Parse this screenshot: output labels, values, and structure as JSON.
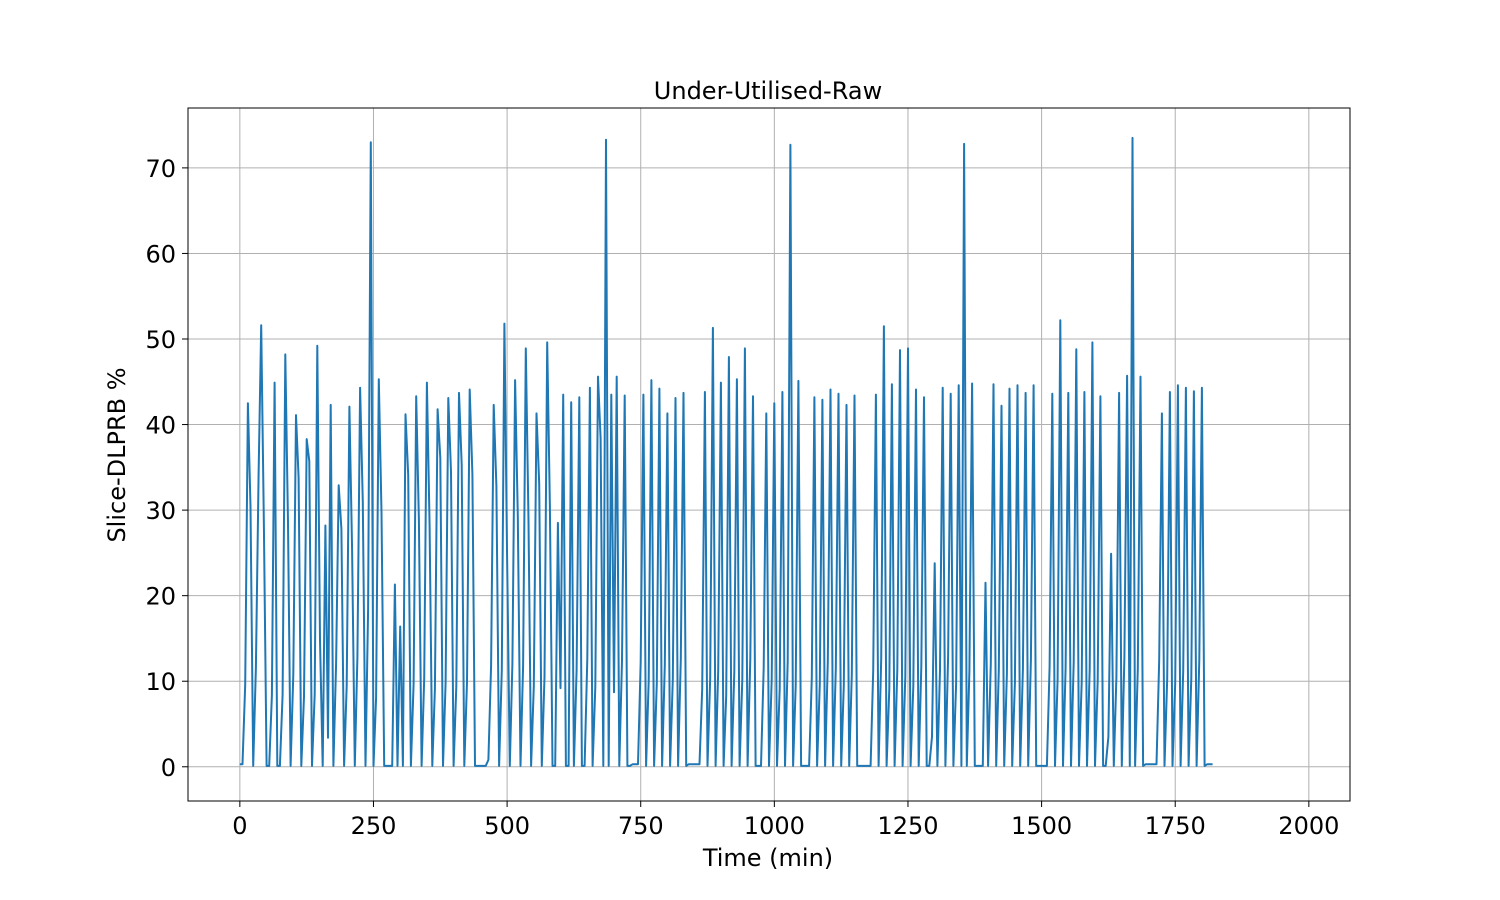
{
  "chart_data": {
    "type": "line",
    "title": "Under-Utilised-Raw",
    "xlabel": "Time (min)",
    "ylabel": "Slice-DLPRB %",
    "xlim": [
      -97,
      2077
    ],
    "ylim": [
      -4,
      77
    ],
    "x_ticks": [
      0,
      250,
      500,
      750,
      1000,
      1250,
      1500,
      1750,
      2000
    ],
    "y_ticks": [
      0,
      10,
      20,
      30,
      40,
      50,
      60,
      70
    ],
    "grid": true,
    "legend": "none",
    "series": [
      {
        "color": "#1f77b4",
        "x_start": 0,
        "x_step": 5,
        "values": [
          0.3,
          0.3,
          9.6,
          42.5,
          30.4,
          0.1,
          11.6,
          34.2,
          51.6,
          28.1,
          0.1,
          0.1,
          8.4,
          44.9,
          0.1,
          0.1,
          8.4,
          48.2,
          28.5,
          0.1,
          10.8,
          41.1,
          33.8,
          0.1,
          8.2,
          38.3,
          35.7,
          0.1,
          8.5,
          49.2,
          14.8,
          0.1,
          28.2,
          3.4,
          42.3,
          0.1,
          12.1,
          32.9,
          27.8,
          0.1,
          9.5,
          42.1,
          25.3,
          0.1,
          12.8,
          44.3,
          30.9,
          0.1,
          18.4,
          73,
          0.1,
          8.1,
          45.3,
          29.7,
          0.1,
          0.1,
          0.1,
          0.1,
          21.3,
          0.1,
          16.4,
          0.1,
          41.2,
          34.1,
          0.1,
          9.7,
          43.3,
          28.8,
          0.1,
          10.3,
          44.9,
          28.1,
          0.1,
          9.1,
          41.8,
          36.1,
          0.1,
          9.8,
          43.1,
          34.5,
          0.1,
          9.4,
          43.7,
          35.3,
          0.1,
          9.9,
          44.1,
          34.2,
          0.1,
          0.1,
          0.1,
          0.1,
          0.1,
          0.8,
          11.9,
          42.3,
          32.8,
          0.1,
          11.3,
          51.8,
          24.5,
          0.1,
          12.1,
          45.2,
          29.3,
          0.1,
          11.8,
          48.9,
          28.7,
          0.1,
          9.4,
          41.3,
          33.1,
          0.1,
          10.5,
          49.6,
          30.3,
          0.1,
          0.1,
          28.5,
          9.2,
          43.5,
          0.1,
          0.1,
          42.6,
          0.1,
          11.3,
          43.2,
          0.1,
          0.1,
          12.6,
          44.3,
          0.1,
          9.3,
          45.6,
          38.4,
          0.1,
          73.3,
          0.1,
          43.5,
          8.7,
          45.6,
          0.1,
          12.4,
          43.4,
          0.1,
          0.1,
          0.3,
          0.3,
          0.3,
          12.3,
          43.5,
          0.1,
          10.1,
          45.2,
          0.1,
          9.8,
          44.2,
          0.1,
          11.9,
          41.3,
          0.1,
          10.2,
          43.1,
          0.1,
          12.6,
          43.7,
          0.1,
          0.3,
          0.3,
          0.3,
          0.3,
          0.3,
          9.1,
          43.8,
          0.1,
          10.4,
          51.3,
          0.1,
          11.2,
          44.9,
          0.1,
          8.3,
          47.9,
          0.1,
          11.1,
          45.3,
          0.1,
          10.2,
          48.9,
          0.1,
          12.6,
          43.3,
          0.1,
          0.1,
          0.1,
          11.6,
          41.3,
          0.1,
          10.2,
          42.5,
          0.1,
          9.1,
          43.8,
          0.1,
          12.3,
          72.7,
          0.1,
          9.5,
          45.1,
          0.1,
          0.1,
          0.1,
          0.1,
          10.4,
          43.2,
          0.1,
          9.7,
          42.9,
          0.1,
          12.3,
          44.1,
          0.1,
          11.4,
          43.6,
          0.1,
          9.5,
          42.3,
          0.1,
          10.8,
          43.4,
          0.1,
          0.1,
          0.1,
          0.1,
          0.1,
          0.1,
          11.2,
          43.5,
          0.1,
          12.6,
          51.5,
          0.1,
          9.1,
          44.7,
          0.1,
          11.3,
          48.7,
          0.1,
          10.5,
          48.9,
          0.1,
          9.4,
          44.1,
          0.1,
          11.7,
          43.2,
          0.1,
          0.1,
          3.5,
          23.8,
          0.1,
          11.3,
          44.3,
          0.1,
          12.8,
          43.6,
          0.1,
          9.6,
          44.6,
          0.1,
          72.8,
          0.1,
          11.2,
          44.8,
          0.1,
          0.1,
          0.1,
          0.1,
          21.5,
          0.1,
          12.1,
          44.7,
          0.1,
          11.3,
          42.2,
          0.1,
          10.9,
          44.2,
          0.1,
          9.8,
          44.6,
          0.1,
          11.4,
          43.7,
          0.1,
          12.5,
          44.6,
          0.1,
          0.1,
          0.1,
          0.1,
          0.1,
          11.7,
          43.6,
          0.1,
          10.2,
          52.2,
          0.1,
          11.5,
          43.7,
          0.1,
          12.2,
          48.8,
          0.1,
          9.9,
          43.8,
          0.1,
          11.4,
          49.6,
          0.1,
          10.1,
          43.3,
          0.1,
          0.1,
          3.5,
          24.9,
          0.1,
          10.5,
          43.7,
          0.1,
          12.8,
          45.7,
          0.1,
          73.5,
          0.1,
          11.4,
          45.6,
          0.1,
          0.3,
          0.3,
          0.3,
          0.3,
          0.3,
          12.5,
          41.3,
          0.1,
          10.3,
          43.8,
          0.1,
          9.8,
          44.6,
          0.1,
          11.2,
          44.3,
          0.1,
          10.4,
          43.9,
          0.1,
          12.5,
          44.3,
          0.1,
          0.3,
          0.3,
          0.3
        ]
      }
    ]
  }
}
